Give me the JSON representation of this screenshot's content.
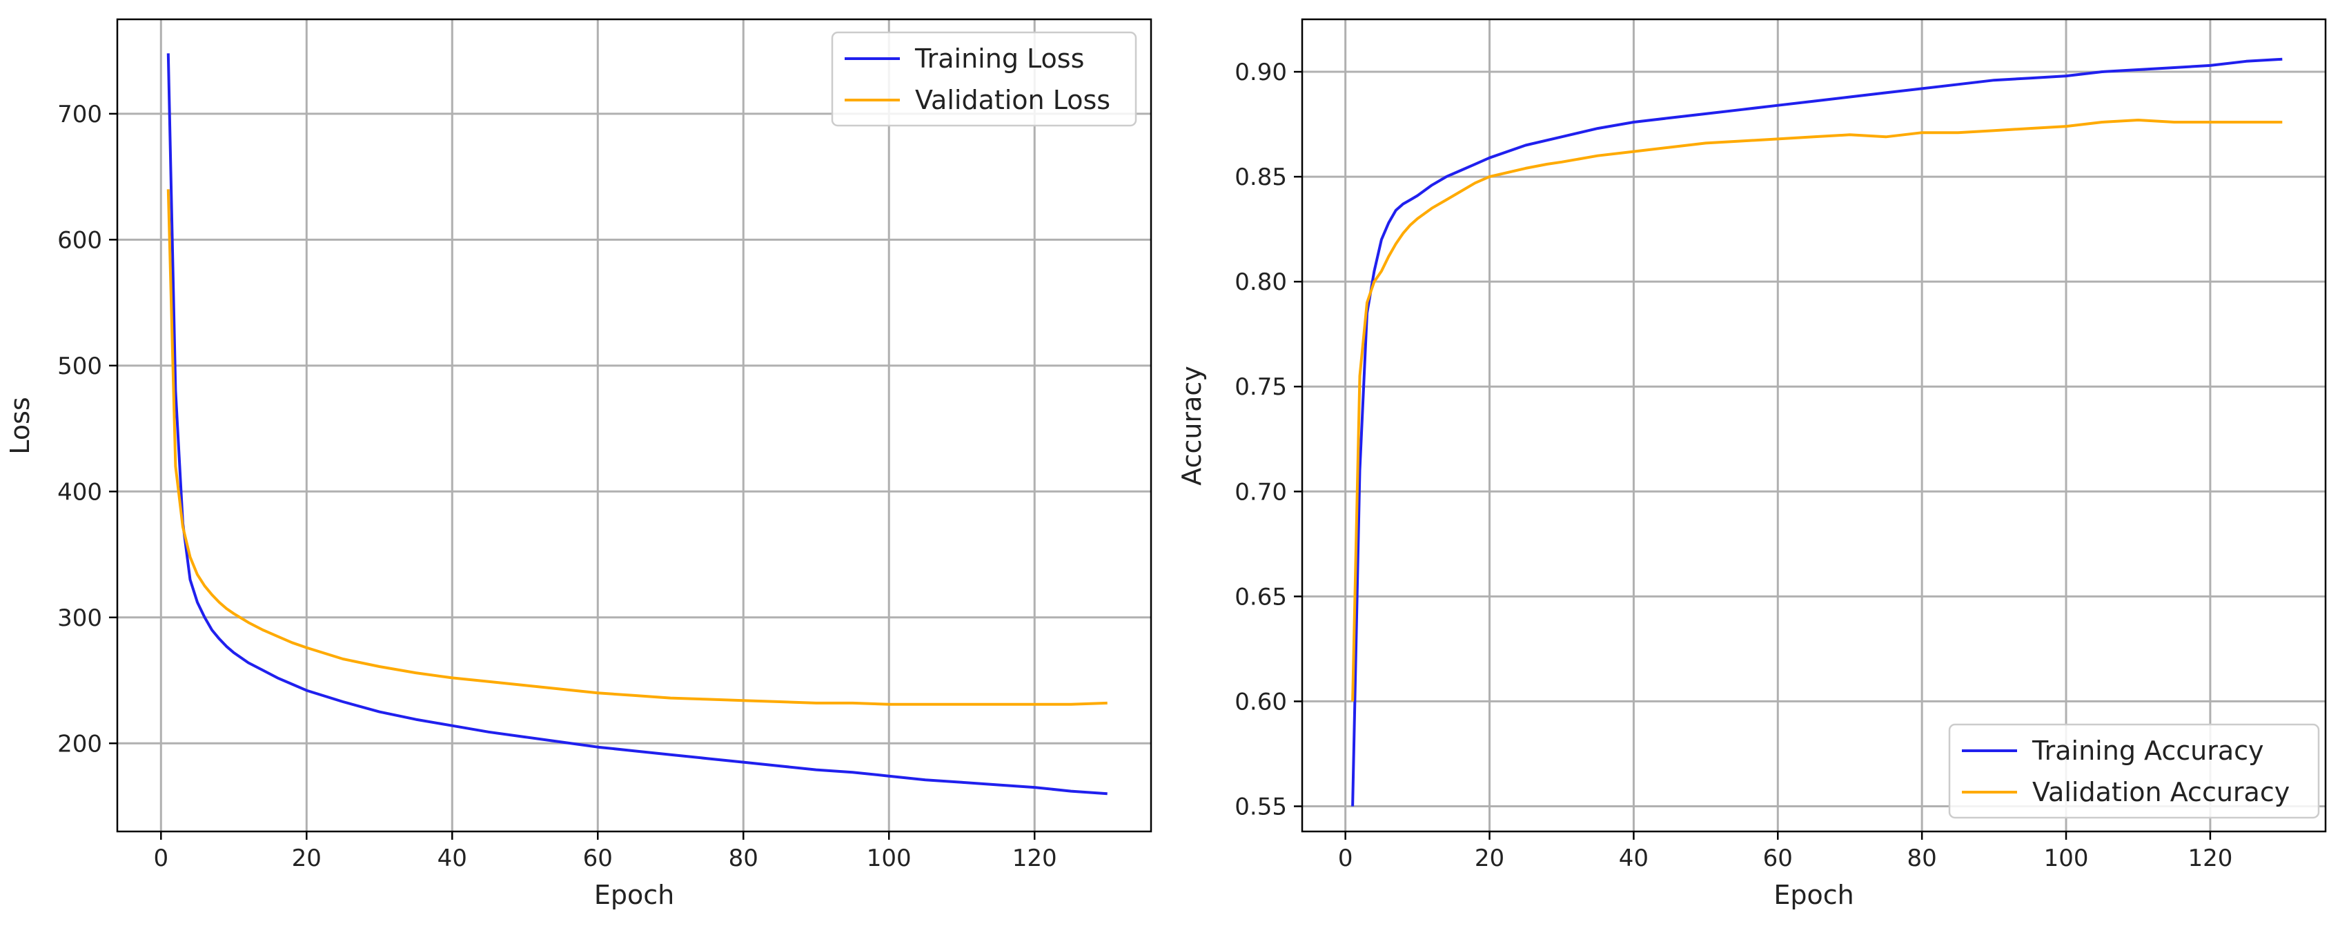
{
  "chart_data": [
    {
      "type": "line",
      "title": "",
      "xlabel": "Epoch",
      "ylabel": "Loss",
      "xlim": [
        -6,
        136
      ],
      "ylim": [
        130,
        775
      ],
      "xticks": [
        0,
        20,
        40,
        60,
        80,
        100,
        120
      ],
      "yticks": [
        200,
        300,
        400,
        500,
        600,
        700
      ],
      "grid": true,
      "legend": "top-right",
      "series": [
        {
          "name": "Training Loss",
          "color": "#2020ee",
          "points": [
            [
              1,
              748
            ],
            [
              2,
              480
            ],
            [
              3,
              375
            ],
            [
              4,
              330
            ],
            [
              5,
              312
            ],
            [
              6,
              300
            ],
            [
              7,
              290
            ],
            [
              8,
              283
            ],
            [
              9,
              277
            ],
            [
              10,
              272
            ],
            [
              12,
              264
            ],
            [
              14,
              258
            ],
            [
              16,
              252
            ],
            [
              18,
              247
            ],
            [
              20,
              242
            ],
            [
              25,
              233
            ],
            [
              30,
              225
            ],
            [
              35,
              219
            ],
            [
              40,
              214
            ],
            [
              45,
              209
            ],
            [
              50,
              205
            ],
            [
              55,
              201
            ],
            [
              60,
              197
            ],
            [
              65,
              194
            ],
            [
              70,
              191
            ],
            [
              75,
              188
            ],
            [
              80,
              185
            ],
            [
              85,
              182
            ],
            [
              90,
              179
            ],
            [
              95,
              177
            ],
            [
              100,
              174
            ],
            [
              105,
              171
            ],
            [
              110,
              169
            ],
            [
              115,
              167
            ],
            [
              120,
              165
            ],
            [
              125,
              162
            ],
            [
              130,
              160
            ]
          ]
        },
        {
          "name": "Validation Loss",
          "color": "#ffaa00",
          "points": [
            [
              1,
              640
            ],
            [
              2,
              420
            ],
            [
              3,
              372
            ],
            [
              4,
              348
            ],
            [
              5,
              334
            ],
            [
              6,
              325
            ],
            [
              7,
              318
            ],
            [
              8,
              312
            ],
            [
              9,
              307
            ],
            [
              10,
              303
            ],
            [
              12,
              296
            ],
            [
              14,
              290
            ],
            [
              16,
              285
            ],
            [
              18,
              280
            ],
            [
              20,
              276
            ],
            [
              25,
              267
            ],
            [
              30,
              261
            ],
            [
              35,
              256
            ],
            [
              40,
              252
            ],
            [
              45,
              249
            ],
            [
              50,
              246
            ],
            [
              55,
              243
            ],
            [
              60,
              240
            ],
            [
              65,
              238
            ],
            [
              70,
              236
            ],
            [
              75,
              235
            ],
            [
              80,
              234
            ],
            [
              85,
              233
            ],
            [
              90,
              232
            ],
            [
              95,
              232
            ],
            [
              100,
              231
            ],
            [
              105,
              231
            ],
            [
              110,
              231
            ],
            [
              115,
              231
            ],
            [
              120,
              231
            ],
            [
              125,
              231
            ],
            [
              130,
              232
            ]
          ]
        }
      ]
    },
    {
      "type": "line",
      "title": "",
      "xlabel": "Epoch",
      "ylabel": "Accuracy",
      "xlim": [
        -6,
        136
      ],
      "ylim": [
        0.538,
        0.925
      ],
      "xticks": [
        0,
        20,
        40,
        60,
        80,
        100,
        120
      ],
      "yticks": [
        0.55,
        0.6,
        0.65,
        0.7,
        0.75,
        0.8,
        0.85,
        0.9
      ],
      "ytick_labels": [
        "0.55",
        "0.60",
        "0.65",
        "0.70",
        "0.75",
        "0.80",
        "0.85",
        "0.90"
      ],
      "grid": true,
      "legend": "bottom-right",
      "series": [
        {
          "name": "Training Accuracy",
          "color": "#2020ee",
          "points": [
            [
              1,
              0.55
            ],
            [
              2,
              0.71
            ],
            [
              3,
              0.785
            ],
            [
              4,
              0.805
            ],
            [
              5,
              0.82
            ],
            [
              6,
              0.828
            ],
            [
              7,
              0.834
            ],
            [
              8,
              0.837
            ],
            [
              9,
              0.839
            ],
            [
              10,
              0.841
            ],
            [
              12,
              0.846
            ],
            [
              14,
              0.85
            ],
            [
              16,
              0.853
            ],
            [
              18,
              0.856
            ],
            [
              20,
              0.859
            ],
            [
              25,
              0.865
            ],
            [
              30,
              0.869
            ],
            [
              35,
              0.873
            ],
            [
              40,
              0.876
            ],
            [
              45,
              0.878
            ],
            [
              50,
              0.88
            ],
            [
              55,
              0.882
            ],
            [
              60,
              0.884
            ],
            [
              65,
              0.886
            ],
            [
              70,
              0.888
            ],
            [
              75,
              0.89
            ],
            [
              80,
              0.892
            ],
            [
              85,
              0.894
            ],
            [
              90,
              0.896
            ],
            [
              95,
              0.897
            ],
            [
              100,
              0.898
            ],
            [
              105,
              0.9
            ],
            [
              110,
              0.901
            ],
            [
              115,
              0.902
            ],
            [
              120,
              0.903
            ],
            [
              125,
              0.905
            ],
            [
              130,
              0.906
            ]
          ]
        },
        {
          "name": "Validation Accuracy",
          "color": "#ffaa00",
          "points": [
            [
              1,
              0.6
            ],
            [
              2,
              0.755
            ],
            [
              3,
              0.79
            ],
            [
              4,
              0.8
            ],
            [
              5,
              0.805
            ],
            [
              6,
              0.812
            ],
            [
              7,
              0.818
            ],
            [
              8,
              0.823
            ],
            [
              9,
              0.827
            ],
            [
              10,
              0.83
            ],
            [
              12,
              0.835
            ],
            [
              14,
              0.839
            ],
            [
              16,
              0.843
            ],
            [
              18,
              0.847
            ],
            [
              20,
              0.85
            ],
            [
              25,
              0.854
            ],
            [
              28,
              0.856
            ],
            [
              30,
              0.857
            ],
            [
              35,
              0.86
            ],
            [
              40,
              0.862
            ],
            [
              45,
              0.864
            ],
            [
              50,
              0.866
            ],
            [
              55,
              0.867
            ],
            [
              60,
              0.868
            ],
            [
              65,
              0.869
            ],
            [
              70,
              0.87
            ],
            [
              75,
              0.869
            ],
            [
              80,
              0.871
            ],
            [
              85,
              0.871
            ],
            [
              90,
              0.872
            ],
            [
              95,
              0.873
            ],
            [
              100,
              0.874
            ],
            [
              105,
              0.876
            ],
            [
              110,
              0.877
            ],
            [
              115,
              0.876
            ],
            [
              120,
              0.876
            ],
            [
              125,
              0.876
            ],
            [
              130,
              0.876
            ]
          ]
        }
      ]
    }
  ]
}
